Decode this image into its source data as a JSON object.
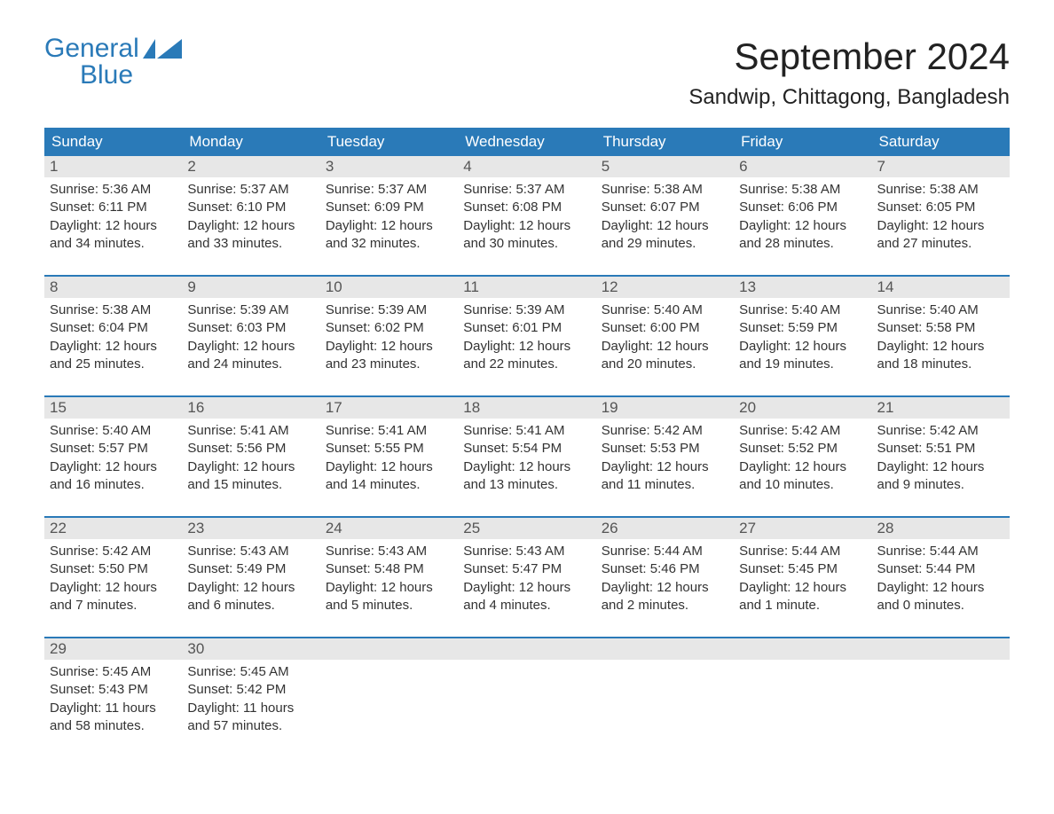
{
  "logo": {
    "word1": "General",
    "word2": "Blue",
    "color": "#2a7ab8"
  },
  "title": "September 2024",
  "location": "Sandwip, Chittagong, Bangladesh",
  "colors": {
    "header_bg": "#2a7ab8",
    "header_text": "#ffffff",
    "daynum_bg": "#e7e7e7",
    "body_text": "#333333",
    "row_border": "#2a7ab8"
  },
  "weekdays": [
    "Sunday",
    "Monday",
    "Tuesday",
    "Wednesday",
    "Thursday",
    "Friday",
    "Saturday"
  ],
  "weeks": [
    [
      {
        "n": "1",
        "sunrise": "Sunrise: 5:36 AM",
        "sunset": "Sunset: 6:11 PM",
        "dl1": "Daylight: 12 hours",
        "dl2": "and 34 minutes."
      },
      {
        "n": "2",
        "sunrise": "Sunrise: 5:37 AM",
        "sunset": "Sunset: 6:10 PM",
        "dl1": "Daylight: 12 hours",
        "dl2": "and 33 minutes."
      },
      {
        "n": "3",
        "sunrise": "Sunrise: 5:37 AM",
        "sunset": "Sunset: 6:09 PM",
        "dl1": "Daylight: 12 hours",
        "dl2": "and 32 minutes."
      },
      {
        "n": "4",
        "sunrise": "Sunrise: 5:37 AM",
        "sunset": "Sunset: 6:08 PM",
        "dl1": "Daylight: 12 hours",
        "dl2": "and 30 minutes."
      },
      {
        "n": "5",
        "sunrise": "Sunrise: 5:38 AM",
        "sunset": "Sunset: 6:07 PM",
        "dl1": "Daylight: 12 hours",
        "dl2": "and 29 minutes."
      },
      {
        "n": "6",
        "sunrise": "Sunrise: 5:38 AM",
        "sunset": "Sunset: 6:06 PM",
        "dl1": "Daylight: 12 hours",
        "dl2": "and 28 minutes."
      },
      {
        "n": "7",
        "sunrise": "Sunrise: 5:38 AM",
        "sunset": "Sunset: 6:05 PM",
        "dl1": "Daylight: 12 hours",
        "dl2": "and 27 minutes."
      }
    ],
    [
      {
        "n": "8",
        "sunrise": "Sunrise: 5:38 AM",
        "sunset": "Sunset: 6:04 PM",
        "dl1": "Daylight: 12 hours",
        "dl2": "and 25 minutes."
      },
      {
        "n": "9",
        "sunrise": "Sunrise: 5:39 AM",
        "sunset": "Sunset: 6:03 PM",
        "dl1": "Daylight: 12 hours",
        "dl2": "and 24 minutes."
      },
      {
        "n": "10",
        "sunrise": "Sunrise: 5:39 AM",
        "sunset": "Sunset: 6:02 PM",
        "dl1": "Daylight: 12 hours",
        "dl2": "and 23 minutes."
      },
      {
        "n": "11",
        "sunrise": "Sunrise: 5:39 AM",
        "sunset": "Sunset: 6:01 PM",
        "dl1": "Daylight: 12 hours",
        "dl2": "and 22 minutes."
      },
      {
        "n": "12",
        "sunrise": "Sunrise: 5:40 AM",
        "sunset": "Sunset: 6:00 PM",
        "dl1": "Daylight: 12 hours",
        "dl2": "and 20 minutes."
      },
      {
        "n": "13",
        "sunrise": "Sunrise: 5:40 AM",
        "sunset": "Sunset: 5:59 PM",
        "dl1": "Daylight: 12 hours",
        "dl2": "and 19 minutes."
      },
      {
        "n": "14",
        "sunrise": "Sunrise: 5:40 AM",
        "sunset": "Sunset: 5:58 PM",
        "dl1": "Daylight: 12 hours",
        "dl2": "and 18 minutes."
      }
    ],
    [
      {
        "n": "15",
        "sunrise": "Sunrise: 5:40 AM",
        "sunset": "Sunset: 5:57 PM",
        "dl1": "Daylight: 12 hours",
        "dl2": "and 16 minutes."
      },
      {
        "n": "16",
        "sunrise": "Sunrise: 5:41 AM",
        "sunset": "Sunset: 5:56 PM",
        "dl1": "Daylight: 12 hours",
        "dl2": "and 15 minutes."
      },
      {
        "n": "17",
        "sunrise": "Sunrise: 5:41 AM",
        "sunset": "Sunset: 5:55 PM",
        "dl1": "Daylight: 12 hours",
        "dl2": "and 14 minutes."
      },
      {
        "n": "18",
        "sunrise": "Sunrise: 5:41 AM",
        "sunset": "Sunset: 5:54 PM",
        "dl1": "Daylight: 12 hours",
        "dl2": "and 13 minutes."
      },
      {
        "n": "19",
        "sunrise": "Sunrise: 5:42 AM",
        "sunset": "Sunset: 5:53 PM",
        "dl1": "Daylight: 12 hours",
        "dl2": "and 11 minutes."
      },
      {
        "n": "20",
        "sunrise": "Sunrise: 5:42 AM",
        "sunset": "Sunset: 5:52 PM",
        "dl1": "Daylight: 12 hours",
        "dl2": "and 10 minutes."
      },
      {
        "n": "21",
        "sunrise": "Sunrise: 5:42 AM",
        "sunset": "Sunset: 5:51 PM",
        "dl1": "Daylight: 12 hours",
        "dl2": "and 9 minutes."
      }
    ],
    [
      {
        "n": "22",
        "sunrise": "Sunrise: 5:42 AM",
        "sunset": "Sunset: 5:50 PM",
        "dl1": "Daylight: 12 hours",
        "dl2": "and 7 minutes."
      },
      {
        "n": "23",
        "sunrise": "Sunrise: 5:43 AM",
        "sunset": "Sunset: 5:49 PM",
        "dl1": "Daylight: 12 hours",
        "dl2": "and 6 minutes."
      },
      {
        "n": "24",
        "sunrise": "Sunrise: 5:43 AM",
        "sunset": "Sunset: 5:48 PM",
        "dl1": "Daylight: 12 hours",
        "dl2": "and 5 minutes."
      },
      {
        "n": "25",
        "sunrise": "Sunrise: 5:43 AM",
        "sunset": "Sunset: 5:47 PM",
        "dl1": "Daylight: 12 hours",
        "dl2": "and 4 minutes."
      },
      {
        "n": "26",
        "sunrise": "Sunrise: 5:44 AM",
        "sunset": "Sunset: 5:46 PM",
        "dl1": "Daylight: 12 hours",
        "dl2": "and 2 minutes."
      },
      {
        "n": "27",
        "sunrise": "Sunrise: 5:44 AM",
        "sunset": "Sunset: 5:45 PM",
        "dl1": "Daylight: 12 hours",
        "dl2": "and 1 minute."
      },
      {
        "n": "28",
        "sunrise": "Sunrise: 5:44 AM",
        "sunset": "Sunset: 5:44 PM",
        "dl1": "Daylight: 12 hours",
        "dl2": "and 0 minutes."
      }
    ],
    [
      {
        "n": "29",
        "sunrise": "Sunrise: 5:45 AM",
        "sunset": "Sunset: 5:43 PM",
        "dl1": "Daylight: 11 hours",
        "dl2": "and 58 minutes."
      },
      {
        "n": "30",
        "sunrise": "Sunrise: 5:45 AM",
        "sunset": "Sunset: 5:42 PM",
        "dl1": "Daylight: 11 hours",
        "dl2": "and 57 minutes."
      },
      {
        "empty": true
      },
      {
        "empty": true
      },
      {
        "empty": true
      },
      {
        "empty": true
      },
      {
        "empty": true
      }
    ]
  ]
}
